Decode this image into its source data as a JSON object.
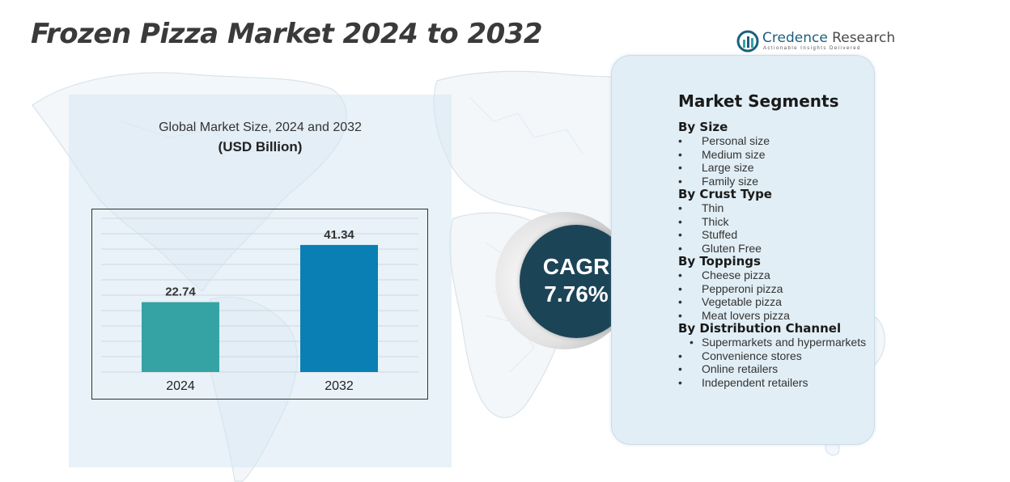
{
  "title": "Frozen Pizza Market 2024 to 2032",
  "brand": {
    "name_part1": "Credence",
    "name_part2": " Research",
    "tagline": "Actionable Insights Delivered"
  },
  "chart_data": {
    "type": "bar",
    "title": "Global Market Size, 2024 and 2032",
    "unit_label": "(USD Billion)",
    "categories": [
      "2024",
      "2032"
    ],
    "values": [
      22.74,
      41.34
    ],
    "value_labels": [
      "22.74",
      "41.34"
    ],
    "colors": [
      "#35a3a4",
      "#0a7fb4"
    ],
    "ylim": [
      0,
      50
    ],
    "grid": true,
    "xlabel": "",
    "ylabel": ""
  },
  "cagr": {
    "label": "CAGR",
    "value": "7.76%"
  },
  "segments": {
    "heading": "Market Segments",
    "groups": [
      {
        "title": "By Size",
        "items": [
          "Personal size",
          "Medium size",
          "Large size",
          "Family size"
        ]
      },
      {
        "title": "By Crust Type",
        "items": [
          "Thin",
          "Thick",
          "Stuffed",
          "Gluten Free"
        ]
      },
      {
        "title": "By Toppings",
        "items": [
          "Cheese pizza",
          "Pepperoni pizza",
          "Vegetable pizza",
          "Meat lovers pizza"
        ]
      },
      {
        "title": "By Distribution Channel",
        "items": [
          "Supermarkets and hypermarkets",
          "Convenience stores",
          "Online retailers",
          "Independent retailers"
        ]
      }
    ]
  },
  "colors": {
    "panel_bg": "#d6e8f3",
    "cagr_core": "#1c4457",
    "brand": "#1c5f7d"
  }
}
